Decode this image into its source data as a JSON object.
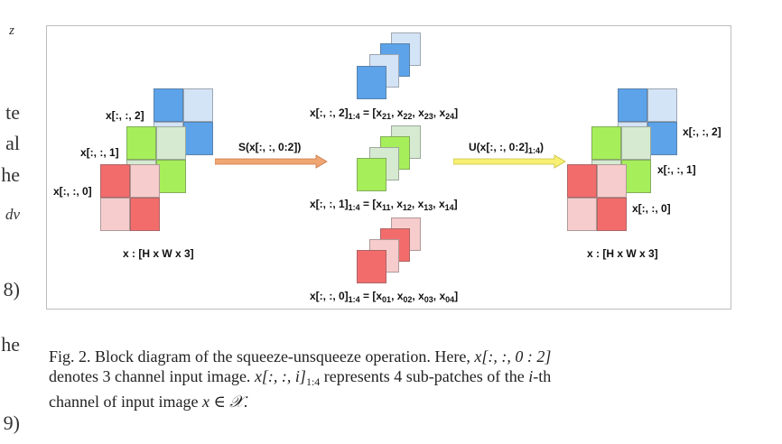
{
  "left_margin_text": [
    "z",
    "te",
    "al",
    "he",
    "dv",
    "8)",
    "he",
    "9)"
  ],
  "figure": {
    "colors": {
      "blue": "#5ca3ea",
      "blue_light": "#d4e4f7",
      "green": "#a6ef5a",
      "green_light": "#d5ead1",
      "red": "#f36c6c",
      "red_light": "#f6cccc",
      "arrow_orange": "#f0a673",
      "arrow_yellow": "#f7f075"
    },
    "input_block": {
      "label_ch2": "x[:, :, 2]",
      "label_ch1": "x[:, :, 1]",
      "label_ch0": "x[:, :, 0]",
      "caption": "x : [H x W x 3]"
    },
    "squeeze_arrow": {
      "label": "S(x[:, :, 0:2])"
    },
    "patches": {
      "ch2": {
        "lhs": "x[:, :, 2]",
        "lhs_sub": "1:4",
        "rhs_prefix": "= [x",
        "items": [
          {
            "sub": "21"
          },
          {
            "sub": "22"
          },
          {
            "sub": "23"
          },
          {
            "sub": "24"
          }
        ]
      },
      "ch1": {
        "lhs": "x[:, :, 1]",
        "lhs_sub": "1:4",
        "rhs_prefix": "= [x",
        "items": [
          {
            "sub": "11"
          },
          {
            "sub": "12"
          },
          {
            "sub": "13"
          },
          {
            "sub": "14"
          }
        ]
      },
      "ch0": {
        "lhs": "x[:, :, 0]",
        "lhs_sub": "1:4",
        "rhs_prefix": "= [x",
        "items": [
          {
            "sub": "01"
          },
          {
            "sub": "02"
          },
          {
            "sub": "03"
          },
          {
            "sub": "04"
          }
        ]
      }
    },
    "unsqueeze_arrow": {
      "label_main": "U(x[:, :, 0:2]",
      "label_sub": "1:4",
      "label_end": ")"
    },
    "output_block": {
      "label_ch2": "x[:, :, 2]",
      "label_ch1": "x[:, :, 1]",
      "label_ch0": "x[:, :, 0]",
      "caption": "x : [H x W x 3]"
    }
  },
  "caption": {
    "line1_a": "Fig. 2.   Block diagram of the squeeze-unsqueeze operation. Here, ",
    "line1_math": "x[:, :, 0 : 2]",
    "line2_a": "denotes 3 channel input image. ",
    "line2_math": "x[:, :, i]",
    "line2_sub": "1:4",
    "line2_b": " represents 4 sub-patches of the ",
    "line2_i": "i",
    "line2_c": "-th",
    "line3_a": "channel of input image ",
    "line3_math": "x ∈ 𝒳",
    "line3_end": "."
  }
}
